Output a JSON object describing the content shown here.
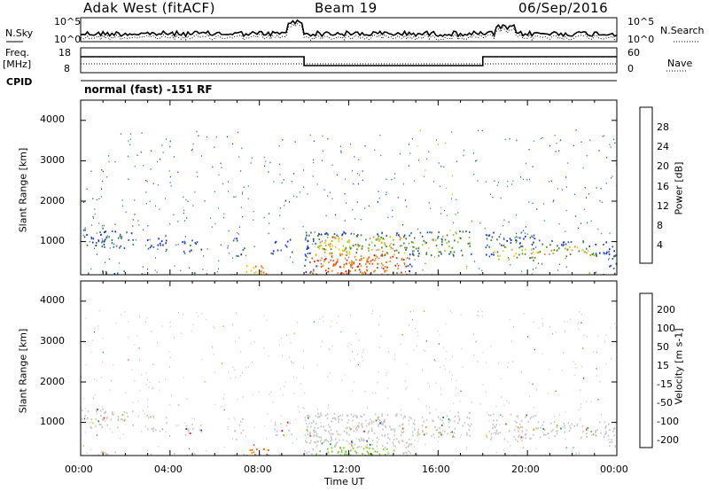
{
  "header": {
    "station": "Adak West (fitACF)",
    "beam": "Beam 19",
    "date": "06/Sep/2016"
  },
  "side_labels": {
    "nsky": "N.Sky",
    "freq": "Freq.",
    "mhz": "[MHz]",
    "cpid": "CPID",
    "nsearch": "N.Search",
    "nave": "Nave"
  },
  "mode_text": "normal (fast) -151 RF",
  "colors": {
    "power": [
      "#1428e6",
      "#2f57b8",
      "#3a7a5c",
      "#4a8a2a",
      "#9ac81e",
      "#f0c814",
      "#f08c14",
      "#f05a0a",
      "#e61e0a"
    ],
    "velocity": [
      "#1e32d2",
      "#2e6ab0",
      "#2e8c3a",
      "#7acc32",
      "#c8c8c8",
      "#f0c83c",
      "#f08c14",
      "#f0500a",
      "#e61414"
    ]
  },
  "chart_data": [
    {
      "type": "line",
      "name": "noise-panel",
      "left_axis_ticks": [
        "10^5",
        "10^0"
      ],
      "right_axis_ticks": [
        "10^5",
        "10^0"
      ],
      "left_label": "N.Sky",
      "right_label": "N.Search",
      "log_scale": true
    },
    {
      "type": "line",
      "name": "freq-nave-panel",
      "left_axis_ticks": [
        "18",
        "8"
      ],
      "right_axis_ticks": [
        "60",
        "0"
      ],
      "left_label": "Freq. [MHz]",
      "right_label": "Nave",
      "freq_steps": [
        {
          "from": "00:00",
          "to": "10:00",
          "level": "high"
        },
        {
          "from": "10:00",
          "to": "18:00",
          "level": "low"
        },
        {
          "from": "18:00",
          "to": "24:00",
          "level": "high"
        }
      ]
    },
    {
      "type": "heatmap",
      "name": "power",
      "ylabel": "Slant Range [km]",
      "yticks": [
        "4000",
        "3000",
        "2000",
        "1000"
      ],
      "ylim": [
        180,
        4500
      ],
      "colorbar_label": "Power [dB]",
      "colorbar_ticks": [
        "28",
        "24",
        "20",
        "16",
        "12",
        "8",
        "4"
      ],
      "grid": false
    },
    {
      "type": "heatmap",
      "name": "velocity",
      "ylabel": "Slant Range [km]",
      "yticks": [
        "4000",
        "3000",
        "2000",
        "1000"
      ],
      "ylim": [
        180,
        4500
      ],
      "colorbar_label": "Velocity [m s-1]",
      "colorbar_ticks": [
        "200",
        "100",
        "50",
        "15",
        "-15",
        "-50",
        "-100",
        "-200"
      ],
      "grid": false
    }
  ],
  "xaxis": {
    "label": "Time UT",
    "ticks": [
      "00:00",
      "04:00",
      "08:00",
      "12:00",
      "16:00",
      "20:00",
      "00:00"
    ],
    "range_hours": [
      0,
      24
    ]
  }
}
